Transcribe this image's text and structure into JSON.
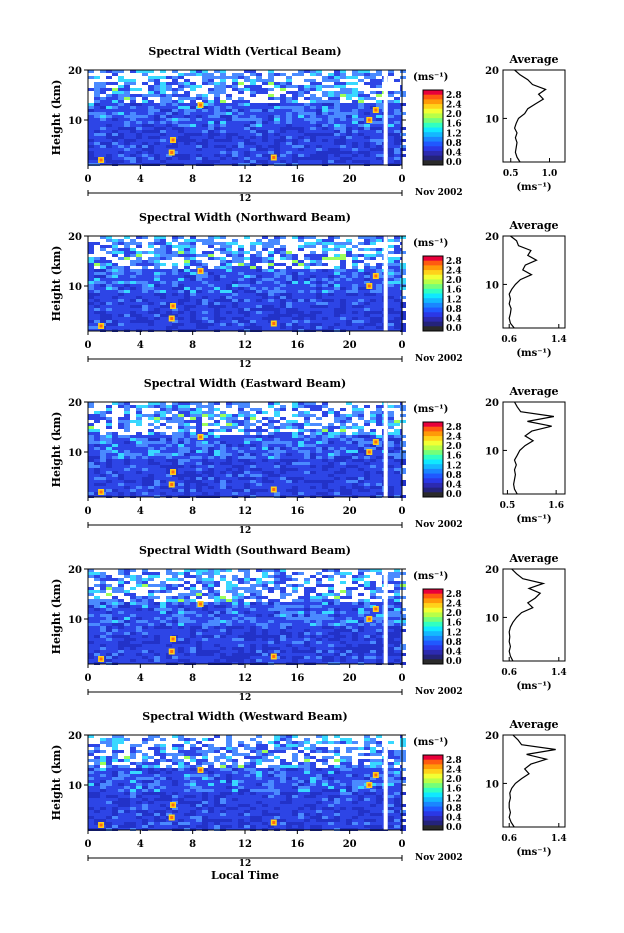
{
  "figure": {
    "xlabel": "Local Time",
    "panel_ylabel": "Height (km)",
    "unit_label": "(ms⁻¹)",
    "average_title": "Average",
    "average_xlabel": "(ms⁻¹)",
    "date_right_label": "Nov 2002",
    "date_center_label": "12",
    "colorbar_ticks": [
      "2.8",
      "2.4",
      "2.0",
      "1.6",
      "1.2",
      "0.8",
      "0.4",
      "0.0"
    ],
    "colorbar_colors": [
      "#e8003a",
      "#ff5a10",
      "#ff9a08",
      "#ffd21a",
      "#f2ff34",
      "#b8ff48",
      "#74ff7a",
      "#30ffc2",
      "#10e8ff",
      "#14b8ff",
      "#1a86ff",
      "#2058ff",
      "#2a38e6",
      "#2c2ab0",
      "#24237a",
      "#2a2a2a"
    ],
    "heatmap_palette": {
      "background": "#2d45e6",
      "low": "#2232c8",
      "mid": "#4a8aff",
      "high1": "#38d8ff",
      "high2": "#9cff5a",
      "high3": "#ffd21a",
      "hot": "#ff6a10",
      "gap": "#ffffff"
    }
  },
  "chart_data": [
    {
      "type": "heatmap",
      "title": "Spectral Width (Vertical Beam)",
      "xlabel": "Local Time",
      "ylabel": "Height (km)",
      "x_ticks": [
        "0",
        "4",
        "8",
        "12",
        "16",
        "20",
        "0"
      ],
      "y_ticks": [
        "20",
        "10"
      ],
      "xlim": [
        0,
        24
      ],
      "ylim": [
        1,
        20
      ],
      "colorbar": {
        "label": "(ms⁻¹)",
        "min": 0.0,
        "max": 3.0
      },
      "average_profile": {
        "title": "Average",
        "x_ticks": [
          "0.5",
          "1.0"
        ],
        "xlim": [
          0.4,
          1.2
        ],
        "ylim": [
          1,
          20
        ],
        "height": [
          1,
          2,
          3,
          4,
          5,
          6,
          7,
          8,
          9,
          10,
          11,
          12,
          13,
          14,
          15,
          16,
          17,
          18,
          19,
          20
        ],
        "value": [
          0.62,
          0.58,
          0.56,
          0.57,
          0.58,
          0.56,
          0.58,
          0.55,
          0.57,
          0.6,
          0.68,
          0.72,
          0.82,
          0.92,
          0.86,
          0.95,
          0.78,
          0.72,
          0.62,
          0.55
        ]
      }
    },
    {
      "type": "heatmap",
      "title": "Spectral Width (Northward Beam)",
      "xlabel": "Local Time",
      "ylabel": "Height (km)",
      "x_ticks": [
        "0",
        "4",
        "8",
        "12",
        "16",
        "20",
        "0"
      ],
      "y_ticks": [
        "20",
        "10"
      ],
      "xlim": [
        0,
        24
      ],
      "ylim": [
        1,
        20
      ],
      "colorbar": {
        "label": "(ms⁻¹)",
        "min": 0.0,
        "max": 3.0
      },
      "average_profile": {
        "title": "Average",
        "x_ticks": [
          "0.6",
          "1.4"
        ],
        "xlim": [
          0.5,
          1.5
        ],
        "ylim": [
          1,
          20
        ],
        "height": [
          1,
          2,
          3,
          4,
          5,
          6,
          7,
          8,
          9,
          10,
          11,
          12,
          13,
          14,
          15,
          16,
          17,
          18,
          19,
          20
        ],
        "value": [
          0.68,
          0.62,
          0.6,
          0.62,
          0.63,
          0.6,
          0.62,
          0.6,
          0.64,
          0.7,
          0.78,
          0.96,
          0.82,
          0.86,
          1.04,
          0.9,
          0.95,
          0.75,
          0.72,
          0.62
        ]
      }
    },
    {
      "type": "heatmap",
      "title": "Spectral Width (Eastward Beam)",
      "xlabel": "Local Time",
      "ylabel": "Height (km)",
      "x_ticks": [
        "0",
        "4",
        "8",
        "12",
        "16",
        "20",
        "0"
      ],
      "y_ticks": [
        "20",
        "10"
      ],
      "xlim": [
        0,
        24
      ],
      "ylim": [
        1,
        20
      ],
      "colorbar": {
        "label": "(ms⁻¹)",
        "min": 0.0,
        "max": 3.0
      },
      "average_profile": {
        "title": "Average",
        "x_ticks": [
          "0.5",
          "1.6"
        ],
        "xlim": [
          0.4,
          1.8
        ],
        "ylim": [
          1,
          20
        ],
        "height": [
          1,
          2,
          3,
          4,
          5,
          6,
          7,
          8,
          9,
          10,
          11,
          12,
          13,
          14,
          15,
          16,
          17,
          18,
          19,
          20
        ],
        "value": [
          0.72,
          0.66,
          0.64,
          0.66,
          0.68,
          0.66,
          0.7,
          0.66,
          0.72,
          0.78,
          0.9,
          1.08,
          0.9,
          1.05,
          1.5,
          0.95,
          1.55,
          0.8,
          0.72,
          0.66
        ]
      }
    },
    {
      "type": "heatmap",
      "title": "Spectral Width (Southward Beam)",
      "xlabel": "Local Time",
      "ylabel": "Height (km)",
      "x_ticks": [
        "0",
        "4",
        "8",
        "12",
        "16",
        "20",
        "0"
      ],
      "y_ticks": [
        "20",
        "10"
      ],
      "xlim": [
        0,
        24
      ],
      "ylim": [
        1,
        20
      ],
      "colorbar": {
        "label": "(ms⁻¹)",
        "min": 0.0,
        "max": 3.0
      },
      "average_profile": {
        "title": "Average",
        "x_ticks": [
          "0.6",
          "1.4"
        ],
        "xlim": [
          0.5,
          1.5
        ],
        "ylim": [
          1,
          20
        ],
        "height": [
          1,
          2,
          3,
          4,
          5,
          6,
          7,
          8,
          9,
          10,
          11,
          12,
          13,
          14,
          15,
          16,
          17,
          18,
          19,
          20
        ],
        "value": [
          0.66,
          0.62,
          0.6,
          0.62,
          0.6,
          0.61,
          0.6,
          0.62,
          0.66,
          0.72,
          0.8,
          0.98,
          0.9,
          1.02,
          1.1,
          0.92,
          1.15,
          0.82,
          0.72,
          0.64
        ]
      }
    },
    {
      "type": "heatmap",
      "title": "Spectral Width (Westward Beam)",
      "xlabel": "Local Time",
      "ylabel": "Height (km)",
      "x_ticks": [
        "0",
        "4",
        "8",
        "12",
        "16",
        "20",
        "0"
      ],
      "y_ticks": [
        "20",
        "10"
      ],
      "xlim": [
        0,
        24
      ],
      "ylim": [
        1,
        20
      ],
      "colorbar": {
        "label": "(ms⁻¹)",
        "min": 0.0,
        "max": 3.0
      },
      "average_profile": {
        "title": "Average",
        "x_ticks": [
          "0.6",
          "1.4"
        ],
        "xlim": [
          0.5,
          1.5
        ],
        "ylim": [
          1,
          20
        ],
        "height": [
          1,
          2,
          3,
          4,
          5,
          6,
          7,
          8,
          9,
          10,
          11,
          12,
          13,
          14,
          15,
          16,
          17,
          18,
          19,
          20
        ],
        "value": [
          0.68,
          0.63,
          0.6,
          0.62,
          0.6,
          0.6,
          0.62,
          0.61,
          0.64,
          0.7,
          0.8,
          0.92,
          0.85,
          0.95,
          1.2,
          0.88,
          1.35,
          0.8,
          0.74,
          0.66
        ]
      }
    }
  ]
}
